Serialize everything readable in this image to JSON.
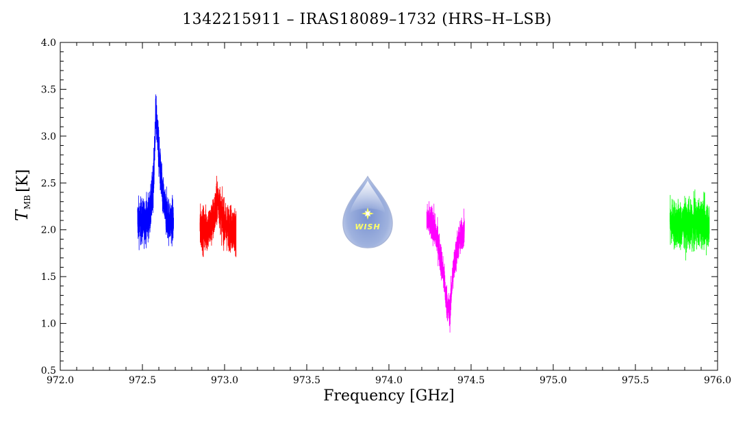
{
  "chart_data": {
    "type": "line",
    "title": "1342215911 – IRAS18089–1732 (HRS–H–LSB)",
    "xlabel": "Frequency [GHz]",
    "ylabel_symbol": "T",
    "ylabel_subscript": "MB",
    "ylabel_unit": "[K]",
    "xlim": [
      972.0,
      976.0
    ],
    "ylim": [
      0.5,
      4.0
    ],
    "x_ticks": [
      "972.0",
      "972.5",
      "973.0",
      "973.5",
      "974.0",
      "974.5",
      "975.0",
      "975.5",
      "976.0"
    ],
    "y_ticks": [
      "0.5",
      "1.0",
      "1.5",
      "2.0",
      "2.5",
      "3.0",
      "3.5",
      "4.0"
    ],
    "grid": false,
    "series": [
      {
        "color": "#0000ff",
        "x_range": [
          972.47,
          972.69
        ],
        "x": [
          972.47,
          972.5,
          972.53,
          972.55,
          972.57,
          972.58,
          972.59,
          972.6,
          972.62,
          972.64,
          972.66,
          972.69
        ],
        "y": [
          2.1,
          2.08,
          2.12,
          2.2,
          2.6,
          3.2,
          3.1,
          2.8,
          2.4,
          2.2,
          2.1,
          2.1
        ],
        "noise": 0.17
      },
      {
        "color": "#ff0000",
        "x_range": [
          972.85,
          973.07
        ],
        "x": [
          972.85,
          972.88,
          972.91,
          972.93,
          972.95,
          972.96,
          972.98,
          973.0,
          973.03,
          973.07
        ],
        "y": [
          2.02,
          2.0,
          2.03,
          2.1,
          2.25,
          2.35,
          2.15,
          2.05,
          2.02,
          2.0
        ],
        "noise": 0.17
      },
      {
        "color": "#ff00ff",
        "x_range": [
          974.23,
          974.46
        ],
        "x": [
          974.23,
          974.27,
          974.3,
          974.33,
          974.35,
          974.37,
          974.39,
          974.42,
          974.46
        ],
        "y": [
          2.1,
          2.05,
          1.85,
          1.55,
          1.25,
          1.1,
          1.55,
          1.85,
          2.0
        ],
        "noise": 0.13
      },
      {
        "color": "#00ff00",
        "x_range": [
          975.71,
          975.95
        ],
        "x": [
          975.71,
          975.76,
          975.8,
          975.85,
          975.9,
          975.95
        ],
        "y": [
          2.08,
          2.05,
          2.05,
          2.05,
          2.08,
          2.05
        ],
        "noise": 0.18
      }
    ]
  },
  "logo": {
    "text": "WISH",
    "star_color": "#ffff66",
    "drop_color": "#8fa6d8"
  }
}
